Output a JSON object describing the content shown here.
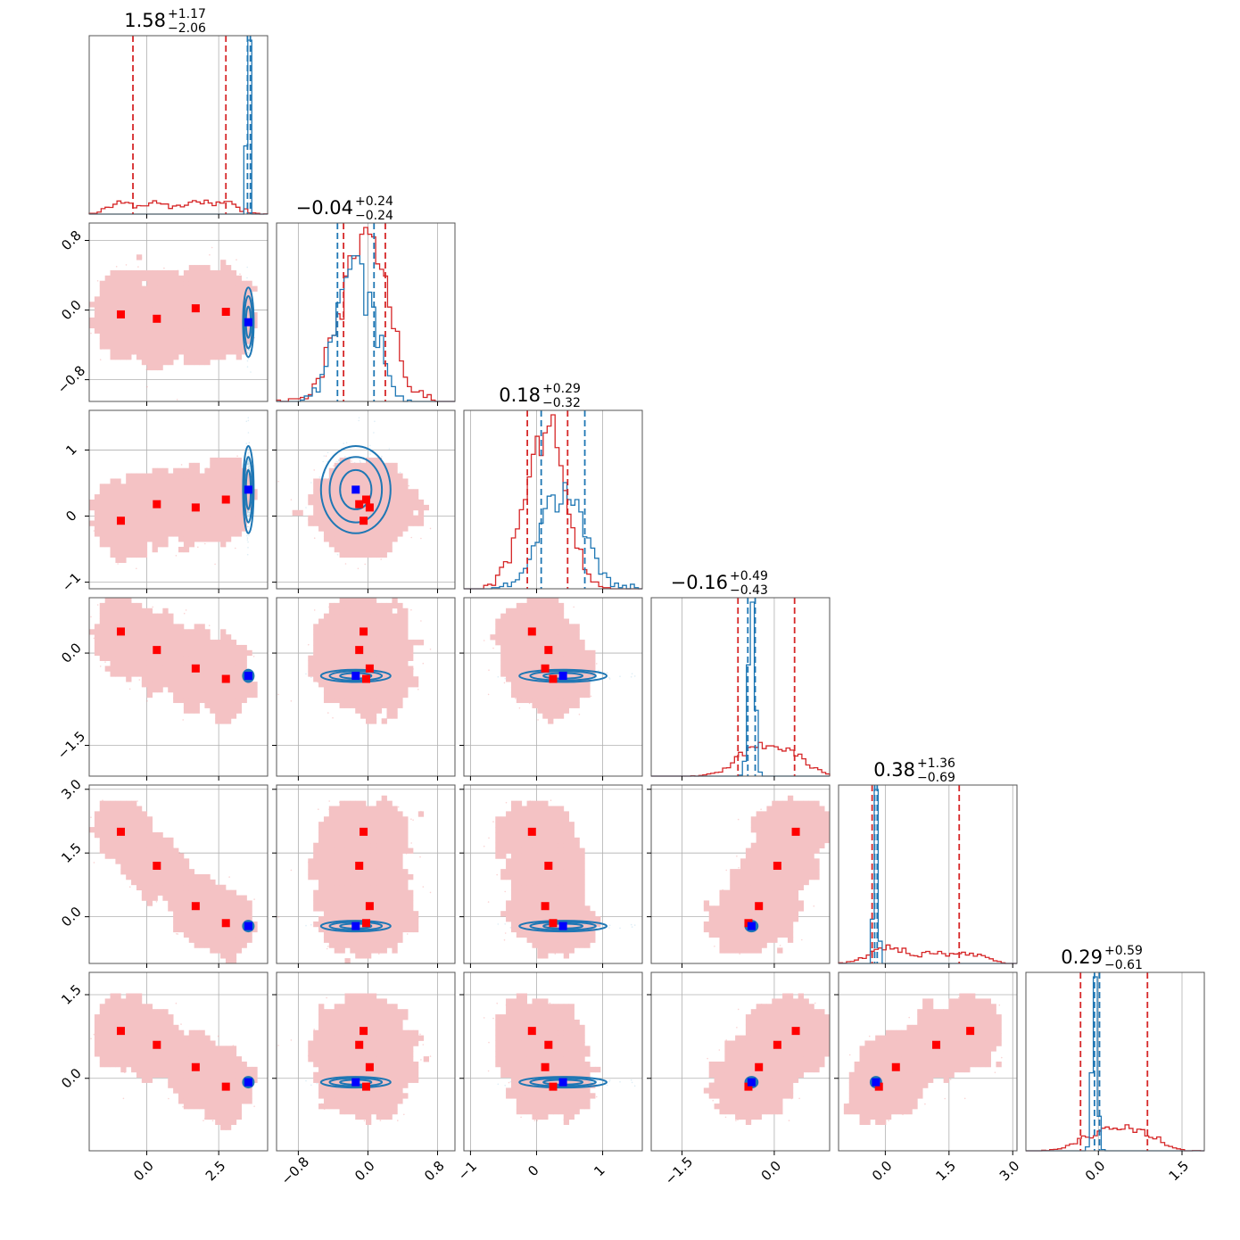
{
  "colors": {
    "red": "#d62728",
    "red_fill_outer": "#f4c2c4",
    "red_fill_mid": "#ec9a9e",
    "red_fill_inner": "#d62728",
    "blue": "#1f77b4",
    "marker_red": "#ff0000",
    "marker_blue": "#0000ff",
    "grid": "#b0b0b0"
  },
  "chart_data": {
    "type": "corner",
    "n_params": 6,
    "grid": true,
    "titles": [
      {
        "value": "1.58",
        "plus": "+1.17",
        "minus": "−2.06"
      },
      {
        "value": "−0.04",
        "plus": "+0.24",
        "minus": "−0.24"
      },
      {
        "value": "0.18",
        "plus": "+0.29",
        "minus": "−0.32"
      },
      {
        "value": "−0.16",
        "plus": "+0.49",
        "minus": "−0.43"
      },
      {
        "value": "0.38",
        "plus": "+1.36",
        "minus": "−0.69"
      },
      {
        "value": "0.29",
        "plus": "+0.59",
        "minus": "−0.61"
      }
    ],
    "ranges": [
      [
        -2.0,
        4.2
      ],
      [
        -1.05,
        1.0
      ],
      [
        -1.1,
        1.6
      ],
      [
        -2.0,
        0.9
      ],
      [
        -1.1,
        3.1
      ],
      [
        -1.3,
        1.9
      ]
    ],
    "ticks": [
      {
        "values": [
          0.0,
          2.5
        ],
        "labels": [
          "0.0",
          "2.5"
        ]
      },
      {
        "values": [
          -0.8,
          0.0,
          0.8
        ],
        "labels": [
          "−0.8",
          "0.0",
          "0.8"
        ]
      },
      {
        "values": [
          -1,
          0,
          1
        ],
        "labels": [
          "−1",
          "0",
          "1"
        ]
      },
      {
        "values": [
          -1.5,
          0.0
        ],
        "labels": [
          "−1.5",
          "0.0"
        ]
      },
      {
        "values": [
          0.0,
          1.5,
          3.0
        ],
        "labels": [
          "0.0",
          "1.5",
          "3.0"
        ]
      },
      {
        "values": [
          0.0,
          1.5
        ],
        "labels": [
          "0.0",
          "1.5"
        ]
      }
    ],
    "red_sample": {
      "name": "",
      "quantiles": [
        [
          -0.48,
          2.75
        ],
        [
          -0.28,
          0.2
        ],
        [
          -0.14,
          0.47
        ],
        [
          -0.59,
          0.33
        ],
        [
          -0.31,
          1.74
        ],
        [
          -0.32,
          0.88
        ]
      ],
      "mixture_means": [
        [
          -0.9,
          -0.05,
          -0.07,
          0.35,
          2.0,
          0.85
        ],
        [
          0.35,
          -0.1,
          0.18,
          0.05,
          1.2,
          0.6
        ],
        [
          1.7,
          0.02,
          0.13,
          -0.25,
          0.25,
          0.2
        ],
        [
          2.75,
          -0.02,
          0.25,
          -0.42,
          -0.15,
          -0.15
        ]
      ],
      "widths": [
        0.75,
        0.25,
        0.28,
        0.3,
        0.35,
        0.3
      ]
    },
    "blue_sample": {
      "name": "",
      "quantiles": [
        [
          3.5,
          3.6
        ],
        [
          -0.35,
          0.07
        ],
        [
          0.07,
          0.73
        ],
        [
          -0.43,
          -0.31
        ],
        [
          -0.25,
          -0.19
        ],
        [
          -0.07,
          0.02
        ]
      ],
      "mean": [
        3.53,
        -0.14,
        0.4,
        -0.37,
        -0.22,
        -0.07
      ],
      "widths": [
        0.03,
        0.2,
        0.33,
        0.05,
        0.04,
        0.04
      ]
    }
  }
}
